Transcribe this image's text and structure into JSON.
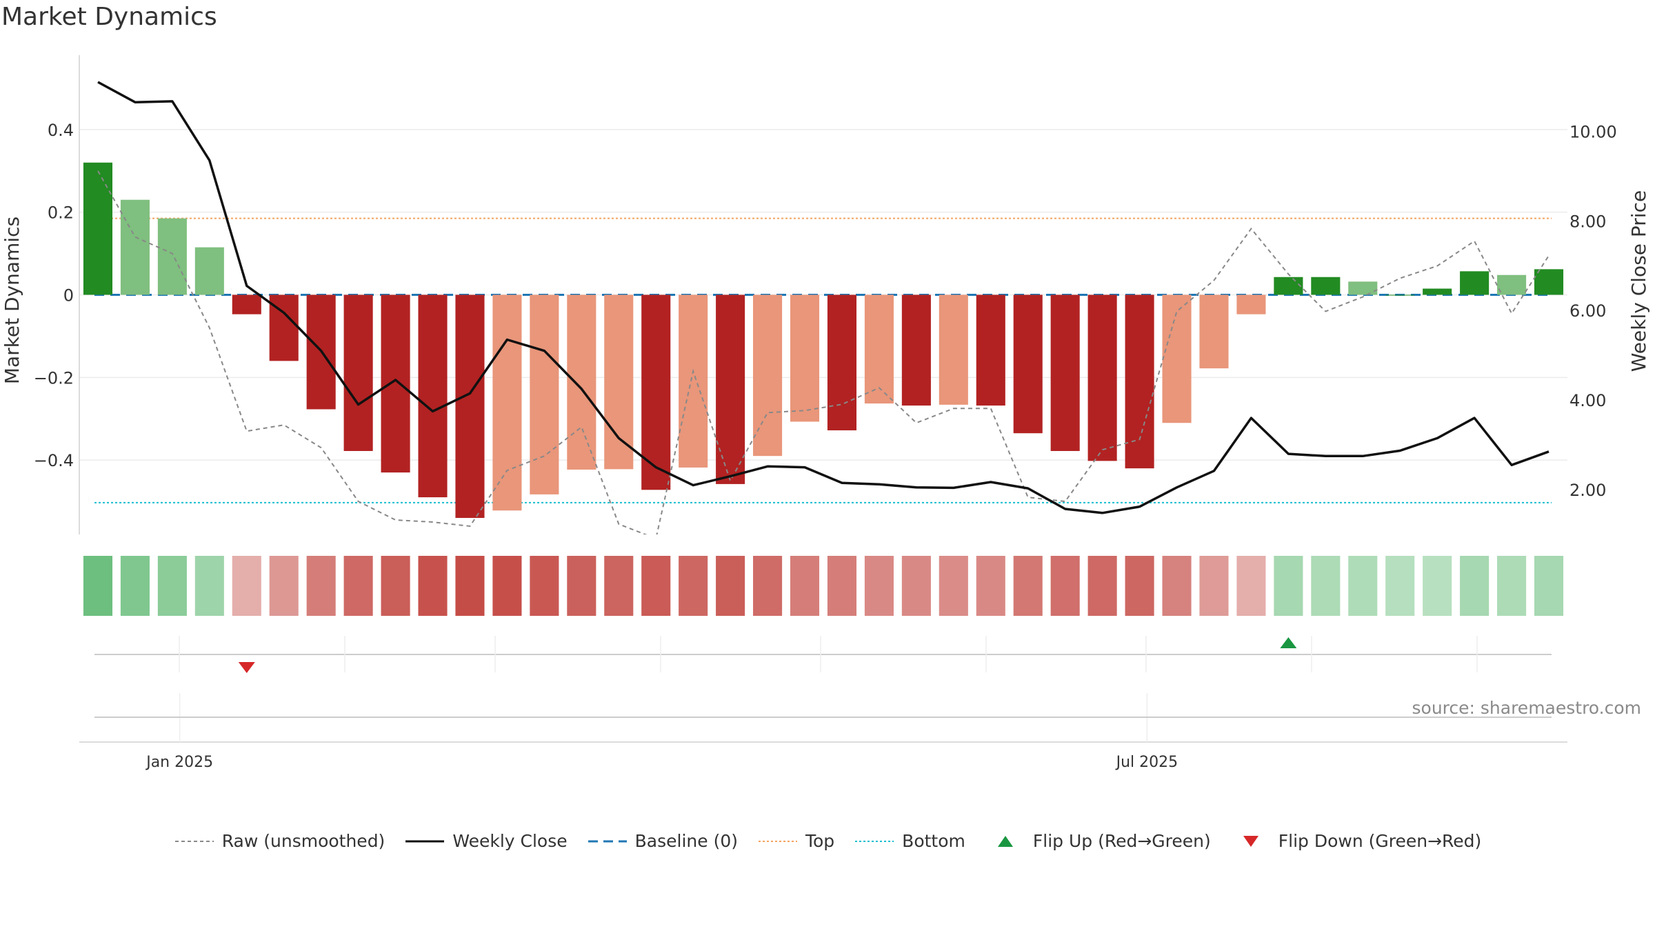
{
  "title": "Market Dynamics",
  "source_text": "source: sharemaestro.com",
  "colors": {
    "dark_green": "#228b22",
    "light_green": "#7fbf7f",
    "dark_red": "#b22222",
    "light_red": "#e9967a",
    "raw_line": "#888888",
    "close_line": "#111111",
    "baseline": "#1f77b4",
    "top": "#f4a460",
    "bottom": "#17becf",
    "flip_up": "#1a9641",
    "flip_down": "#d62728"
  },
  "legend": {
    "raw": "Raw (unsmoothed)",
    "close": "Weekly Close",
    "baseline": "Baseline (0)",
    "top": "Top",
    "bottom": "Bottom",
    "flip_up": "Flip Up (Red→Green)",
    "flip_down": "Flip Down (Green→Red)"
  },
  "chart_data": {
    "type": "bar",
    "title": "Market Dynamics",
    "ylabel": "Market Dynamics",
    "y2label": "Weekly Close Price",
    "ylim": [
      -0.58,
      0.58
    ],
    "y2lim": [
      1.0,
      11.7
    ],
    "yticks": [
      0.4,
      0.2,
      0,
      -0.2,
      -0.4
    ],
    "ytick_labels": [
      "0.4",
      "0.2",
      "0",
      "−0.2",
      "−0.4"
    ],
    "y2ticks": [
      10.0,
      8.0,
      6.0,
      4.0,
      2.0
    ],
    "y2tick_labels": [
      "10.00",
      "8.00",
      "6.00",
      "4.00",
      "2.00"
    ],
    "xtick_labels": [
      "Jan 2025",
      "Jul 2025"
    ],
    "xtick_index": [
      2.2,
      28.2
    ],
    "grid": true,
    "legend_position": "bottom",
    "top_level": 0.185,
    "bottom_level": -0.503,
    "baseline_level": 0,
    "bars": [
      0.32,
      0.23,
      0.185,
      0.115,
      -0.047,
      -0.16,
      -0.277,
      -0.378,
      -0.43,
      -0.49,
      -0.54,
      -0.522,
      -0.483,
      -0.423,
      -0.422,
      -0.472,
      -0.418,
      -0.458,
      -0.39,
      -0.307,
      -0.328,
      -0.263,
      -0.268,
      -0.266,
      -0.268,
      -0.335,
      -0.378,
      -0.402,
      -0.42,
      -0.31,
      -0.178,
      -0.047,
      0.043,
      0.043,
      0.032,
      0.0,
      0.015,
      0.057,
      0.048,
      0.062
    ],
    "bar_shades": [
      "dark",
      "light",
      "light",
      "light",
      "dark",
      "dark",
      "dark",
      "dark",
      "dark",
      "dark",
      "dark",
      "light",
      "light",
      "light",
      "light",
      "dark",
      "light",
      "dark",
      "light",
      "light",
      "dark",
      "light",
      "dark",
      "light",
      "dark",
      "dark",
      "dark",
      "dark",
      "dark",
      "light",
      "light",
      "light",
      "dark",
      "dark",
      "light",
      "dark",
      "dark",
      "dark",
      "light",
      "dark"
    ],
    "raw": [
      0.3,
      0.14,
      0.1,
      -0.08,
      -0.33,
      -0.315,
      -0.37,
      -0.5,
      -0.545,
      -0.55,
      -0.56,
      -0.425,
      -0.39,
      -0.32,
      -0.555,
      -0.59,
      -0.185,
      -0.45,
      -0.285,
      -0.28,
      -0.265,
      -0.225,
      -0.31,
      -0.275,
      -0.275,
      -0.49,
      -0.5,
      -0.375,
      -0.35,
      -0.04,
      0.035,
      0.16,
      0.05,
      -0.04,
      -0.005,
      0.04,
      0.07,
      0.13,
      -0.045,
      0.095
    ],
    "close": [
      11.1,
      10.65,
      10.67,
      9.35,
      6.55,
      5.95,
      5.1,
      3.9,
      4.45,
      3.75,
      4.15,
      5.35,
      5.1,
      4.25,
      3.15,
      2.5,
      2.1,
      2.3,
      2.52,
      2.5,
      2.15,
      2.12,
      2.05,
      2.04,
      2.17,
      2.03,
      1.57,
      1.48,
      1.62,
      2.05,
      2.42,
      3.6,
      2.8,
      2.75,
      2.75,
      2.87,
      3.15,
      3.6,
      2.55,
      2.85
    ],
    "strip_intensity": [
      0.95,
      0.78,
      0.68,
      0.52,
      0.25,
      0.4,
      0.58,
      0.72,
      0.8,
      0.88,
      0.92,
      0.9,
      0.84,
      0.78,
      0.76,
      0.82,
      0.74,
      0.8,
      0.7,
      0.58,
      0.58,
      0.5,
      0.5,
      0.48,
      0.5,
      0.62,
      0.68,
      0.72,
      0.74,
      0.55,
      0.38,
      0.25,
      0.45,
      0.4,
      0.38,
      0.32,
      0.3,
      0.45,
      0.4,
      0.45
    ],
    "strip_sign": [
      "g",
      "g",
      "g",
      "g",
      "r",
      "r",
      "r",
      "r",
      "r",
      "r",
      "r",
      "r",
      "r",
      "r",
      "r",
      "r",
      "r",
      "r",
      "r",
      "r",
      "r",
      "r",
      "r",
      "r",
      "r",
      "r",
      "r",
      "r",
      "r",
      "r",
      "r",
      "r",
      "g",
      "g",
      "g",
      "g",
      "g",
      "g",
      "g",
      "g"
    ],
    "flip_up_index": [
      32
    ],
    "flip_down_index": [
      4
    ]
  }
}
